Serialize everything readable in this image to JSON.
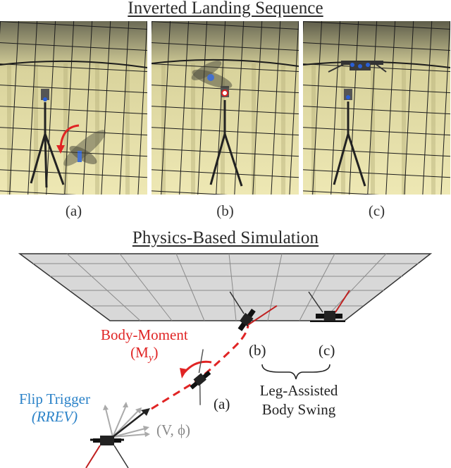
{
  "top_title": "Inverted Landing Sequence",
  "photos": [
    {
      "caption": "(a)"
    },
    {
      "caption": "(b)"
    },
    {
      "caption": "(c)"
    }
  ],
  "sim": {
    "title": "Physics-Based Simulation",
    "body_moment_line1": "Body-Moment",
    "body_moment_line2": "(M",
    "body_moment_sub": "y",
    "body_moment_close": ")",
    "flip_trigger_line1": "Flip Trigger",
    "flip_trigger_line2": "(RREV)",
    "velocity_label": "(V, ϕ)",
    "label_a": "(a)",
    "label_b": "(b)",
    "label_c": "(c)",
    "swing_line1": "Leg-Assisted",
    "swing_line2": "Body Swing"
  },
  "colors": {
    "accent_red": "#e02424",
    "accent_blue": "#2a82c8",
    "ceiling_gray": "#d8d8d8",
    "wall_yellow": "#e6dfa9"
  }
}
